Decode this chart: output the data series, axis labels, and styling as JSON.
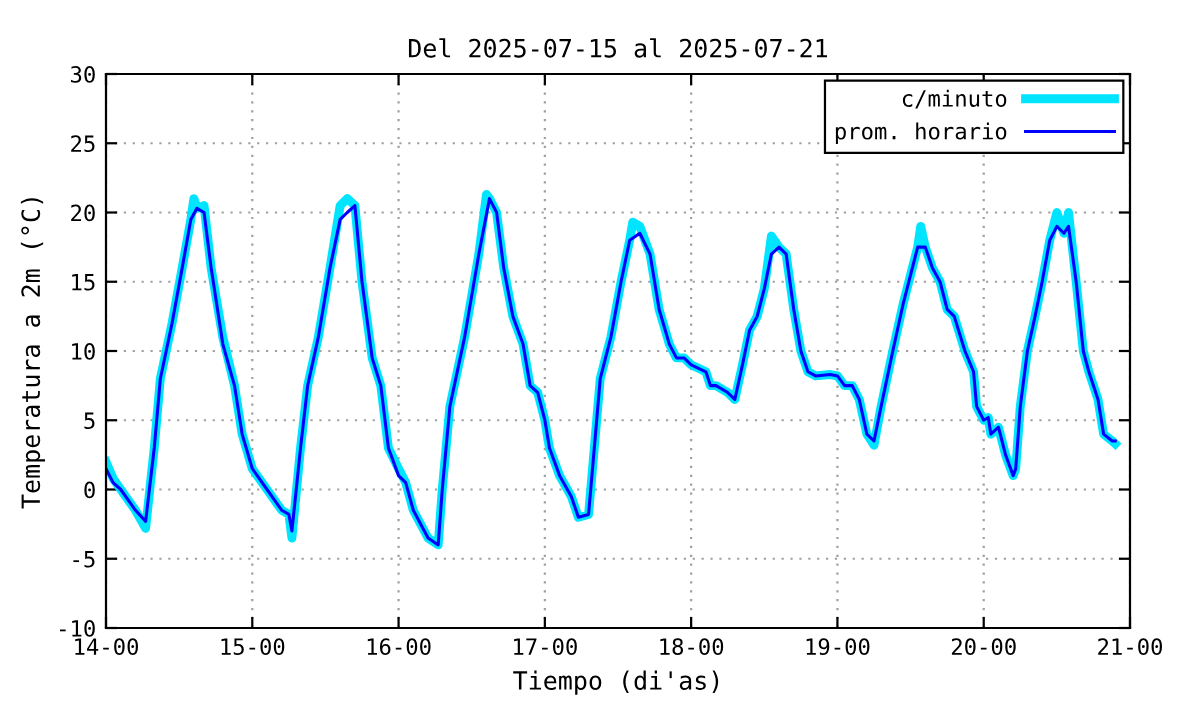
{
  "chart_data": {
    "type": "line",
    "title": "Del 2025-07-15 al 2025-07-21",
    "xlabel": "Tiempo (di'as)",
    "ylabel": "Temperatura a 2m (°C)",
    "xlim": [
      "2025-07-14T00:00",
      "2025-07-21T00:00"
    ],
    "ylim": [
      -10,
      30
    ],
    "xticks": [
      {
        "value": "2025-07-14T00:00",
        "label": "14-00"
      },
      {
        "value": "2025-07-15T00:00",
        "label": "15-00"
      },
      {
        "value": "2025-07-16T00:00",
        "label": "16-00"
      },
      {
        "value": "2025-07-17T00:00",
        "label": "17-00"
      },
      {
        "value": "2025-07-18T00:00",
        "label": "18-00"
      },
      {
        "value": "2025-07-19T00:00",
        "label": "19-00"
      },
      {
        "value": "2025-07-20T00:00",
        "label": "20-00"
      },
      {
        "value": "2025-07-21T00:00",
        "label": "21-00"
      }
    ],
    "yticks": [
      -10,
      -5,
      0,
      5,
      10,
      15,
      20,
      25,
      30
    ],
    "grid": true,
    "legend": "top right",
    "line_style": "solid",
    "marker": "none",
    "series": [
      {
        "name": "c/minuto",
        "color": "#00e5ff",
        "x": [
          "2025-07-14T00:00",
          "2025-07-14T01:10",
          "2025-07-14T02:25",
          "2025-07-14T04:50",
          "2025-07-14T06:30",
          "2025-07-14T07:55",
          "2025-07-14T08:55",
          "2025-07-14T10:50",
          "2025-07-14T12:30",
          "2025-07-14T13:55",
          "2025-07-14T14:25",
          "2025-07-14T14:55",
          "2025-07-14T16:05",
          "2025-07-14T17:15",
          "2025-07-14T19:10",
          "2025-07-14T21:05",
          "2025-07-14T22:20",
          "2025-07-15T00:00",
          "2025-07-15T02:25",
          "2025-07-15T04:50",
          "2025-07-15T06:00",
          "2025-07-15T06:30",
          "2025-07-15T07:55",
          "2025-07-15T09:05",
          "2025-07-15T10:50",
          "2025-07-15T12:45",
          "2025-07-15T14:25",
          "2025-07-15T15:35",
          "2025-07-15T16:50",
          "2025-07-15T18:00",
          "2025-07-15T19:40",
          "2025-07-15T21:05",
          "2025-07-15T22:20",
          "2025-07-16T00:00",
          "2025-07-16T01:10",
          "2025-07-16T02:25",
          "2025-07-16T04:50",
          "2025-07-16T06:30",
          "2025-07-16T07:10",
          "2025-07-16T08:25",
          "2025-07-16T10:50",
          "2025-07-16T13:10",
          "2025-07-16T14:25",
          "2025-07-16T14:55",
          "2025-07-16T16:05",
          "2025-07-16T17:15",
          "2025-07-16T18:45",
          "2025-07-16T20:25",
          "2025-07-16T21:35",
          "2025-07-16T22:50",
          "2025-07-17T00:00",
          "2025-07-17T00:45",
          "2025-07-17T02:25",
          "2025-07-17T04:20",
          "2025-07-17T05:30",
          "2025-07-17T07:10",
          "2025-07-17T07:55",
          "2025-07-17T09:05",
          "2025-07-17T10:50",
          "2025-07-17T12:30",
          "2025-07-17T13:55",
          "2025-07-17T14:25",
          "2025-07-17T15:35",
          "2025-07-17T17:15",
          "2025-07-17T18:45",
          "2025-07-17T20:25",
          "2025-07-17T21:35",
          "2025-07-17T22:50",
          "2025-07-18T00:00",
          "2025-07-18T02:25",
          "2025-07-18T03:10",
          "2025-07-18T04:05",
          "2025-07-18T06:00",
          "2025-07-18T07:10",
          "2025-07-18T08:25",
          "2025-07-18T09:35",
          "2025-07-18T10:50",
          "2025-07-18T12:00",
          "2025-07-18T13:10",
          "2025-07-18T14:25",
          "2025-07-18T15:35",
          "2025-07-18T16:50",
          "2025-07-18T18:00",
          "2025-07-18T19:10",
          "2025-07-18T20:25",
          "2025-07-18T22:50",
          "2025-07-19T00:00",
          "2025-07-19T01:10",
          "2025-07-19T02:25",
          "2025-07-19T03:35",
          "2025-07-19T04:50",
          "2025-07-19T06:00",
          "2025-07-19T07:10",
          "2025-07-19T09:05",
          "2025-07-19T10:50",
          "2025-07-19T13:10",
          "2025-07-19T13:40",
          "2025-07-19T14:25",
          "2025-07-19T15:35",
          "2025-07-19T16:50",
          "2025-07-19T18:00",
          "2025-07-19T19:10",
          "2025-07-19T20:55",
          "2025-07-19T22:20",
          "2025-07-19T22:50",
          "2025-07-20T00:00",
          "2025-07-20T00:45",
          "2025-07-20T01:10",
          "2025-07-20T02:25",
          "2025-07-20T03:35",
          "2025-07-20T04:50",
          "2025-07-20T05:15",
          "2025-07-20T06:00",
          "2025-07-20T07:10",
          "2025-07-20T08:25",
          "2025-07-20T09:35",
          "2025-07-20T10:50",
          "2025-07-20T12:00",
          "2025-07-20T13:10",
          "2025-07-20T13:55",
          "2025-07-20T15:10",
          "2025-07-20T16:20",
          "2025-07-20T17:15",
          "2025-07-20T18:45",
          "2025-07-20T19:40",
          "2025-07-20T21:05",
          "2025-07-20T21:35"
        ],
        "values": [
          2,
          0.8,
          0,
          -1.5,
          -2.8,
          3,
          8,
          12,
          16,
          19.5,
          21,
          20.3,
          20.5,
          16,
          11,
          7.5,
          4,
          1.5,
          0,
          -1.5,
          -1.8,
          -3.5,
          3,
          7.5,
          11,
          16,
          20.5,
          21,
          20.5,
          15,
          9.5,
          7.5,
          3,
          1.5,
          0.5,
          -1.5,
          -3.5,
          -4,
          0,
          6,
          11,
          17,
          21.3,
          21,
          20,
          16,
          12.5,
          10.5,
          7.5,
          7,
          5,
          3,
          1,
          -0.5,
          -2,
          -1.8,
          2,
          8,
          11,
          15,
          18,
          19.3,
          19,
          17,
          13,
          10.5,
          9.5,
          9.5,
          9,
          8.5,
          7.5,
          7.5,
          7,
          6.5,
          9,
          11.5,
          12.5,
          14.5,
          18.3,
          17.5,
          17,
          13,
          10,
          8.5,
          8.2,
          8.3,
          8.2,
          7.5,
          7.5,
          6.5,
          4,
          3.2,
          6,
          10,
          13.5,
          17.5,
          19,
          17.5,
          16,
          15,
          13,
          12.5,
          10,
          8.5,
          6,
          5,
          5.2,
          4,
          4.5,
          2.5,
          1,
          1.5,
          6,
          10,
          12.5,
          15,
          18,
          20,
          18.5,
          20,
          15,
          10,
          8.5,
          6.5,
          4,
          3.5,
          3.3
        ]
      },
      {
        "name": "prom. horario",
        "color": "#0000ff",
        "x": [
          "2025-07-14T00:00",
          "2025-07-14T01:10",
          "2025-07-14T02:25",
          "2025-07-14T04:50",
          "2025-07-14T06:30",
          "2025-07-14T07:55",
          "2025-07-14T08:55",
          "2025-07-14T10:50",
          "2025-07-14T12:30",
          "2025-07-14T13:55",
          "2025-07-14T14:55",
          "2025-07-14T16:05",
          "2025-07-14T17:15",
          "2025-07-14T19:10",
          "2025-07-14T21:05",
          "2025-07-14T22:20",
          "2025-07-15T00:00",
          "2025-07-15T02:25",
          "2025-07-15T04:50",
          "2025-07-15T06:00",
          "2025-07-15T06:30",
          "2025-07-15T07:55",
          "2025-07-15T09:05",
          "2025-07-15T10:50",
          "2025-07-15T12:45",
          "2025-07-15T14:25",
          "2025-07-15T15:35",
          "2025-07-15T16:50",
          "2025-07-15T18:00",
          "2025-07-15T19:40",
          "2025-07-15T21:05",
          "2025-07-15T22:20",
          "2025-07-16T00:00",
          "2025-07-16T01:10",
          "2025-07-16T02:25",
          "2025-07-16T04:50",
          "2025-07-16T06:30",
          "2025-07-16T07:10",
          "2025-07-16T08:25",
          "2025-07-16T10:50",
          "2025-07-16T13:10",
          "2025-07-16T14:55",
          "2025-07-16T16:05",
          "2025-07-16T17:15",
          "2025-07-16T18:45",
          "2025-07-16T20:25",
          "2025-07-16T21:35",
          "2025-07-16T22:50",
          "2025-07-17T00:00",
          "2025-07-17T00:45",
          "2025-07-17T02:25",
          "2025-07-17T04:20",
          "2025-07-17T05:30",
          "2025-07-17T07:10",
          "2025-07-17T07:55",
          "2025-07-17T09:05",
          "2025-07-17T10:50",
          "2025-07-17T12:30",
          "2025-07-17T13:55",
          "2025-07-17T15:35",
          "2025-07-17T17:15",
          "2025-07-17T18:45",
          "2025-07-17T20:25",
          "2025-07-17T21:35",
          "2025-07-17T22:50",
          "2025-07-18T00:00",
          "2025-07-18T02:25",
          "2025-07-18T03:10",
          "2025-07-18T04:05",
          "2025-07-18T06:00",
          "2025-07-18T07:10",
          "2025-07-18T08:25",
          "2025-07-18T09:35",
          "2025-07-18T10:50",
          "2025-07-18T12:00",
          "2025-07-18T13:10",
          "2025-07-18T14:25",
          "2025-07-18T15:35",
          "2025-07-18T16:50",
          "2025-07-18T18:00",
          "2025-07-18T19:10",
          "2025-07-18T20:25",
          "2025-07-18T22:50",
          "2025-07-19T00:00",
          "2025-07-19T01:10",
          "2025-07-19T02:25",
          "2025-07-19T03:35",
          "2025-07-19T04:50",
          "2025-07-19T06:00",
          "2025-07-19T07:10",
          "2025-07-19T09:05",
          "2025-07-19T10:50",
          "2025-07-19T13:10",
          "2025-07-19T14:25",
          "2025-07-19T15:35",
          "2025-07-19T16:50",
          "2025-07-19T18:00",
          "2025-07-19T19:10",
          "2025-07-19T20:55",
          "2025-07-19T22:20",
          "2025-07-19T22:50",
          "2025-07-20T00:00",
          "2025-07-20T00:45",
          "2025-07-20T01:10",
          "2025-07-20T02:25",
          "2025-07-20T03:35",
          "2025-07-20T04:50",
          "2025-07-20T05:15",
          "2025-07-20T06:00",
          "2025-07-20T07:10",
          "2025-07-20T08:25",
          "2025-07-20T09:35",
          "2025-07-20T10:50",
          "2025-07-20T12:00",
          "2025-07-20T13:10",
          "2025-07-20T13:55",
          "2025-07-20T15:10",
          "2025-07-20T16:20",
          "2025-07-20T17:15",
          "2025-07-20T18:45",
          "2025-07-20T19:40",
          "2025-07-20T21:05",
          "2025-07-20T21:35"
        ],
        "values": [
          1.5,
          0.5,
          0,
          -1.5,
          -2.3,
          3,
          8,
          12,
          16,
          19.5,
          20.3,
          20,
          16,
          10.5,
          7.5,
          4,
          1.5,
          0,
          -1.5,
          -1.8,
          -3,
          3,
          7.5,
          11,
          16,
          19.5,
          20,
          20.5,
          15,
          9.5,
          7.5,
          3,
          1,
          0.5,
          -1.5,
          -3.5,
          -4,
          0,
          6,
          11,
          17,
          21,
          20,
          16,
          12.5,
          10.5,
          7.5,
          7,
          5,
          3,
          1,
          -0.5,
          -2,
          -1.8,
          2,
          8,
          11,
          15,
          18,
          18.5,
          17,
          13,
          10.5,
          9.5,
          9.5,
          9,
          8.5,
          7.5,
          7.5,
          7,
          6.5,
          9,
          11.5,
          12.5,
          14.5,
          17,
          17.5,
          17,
          13,
          10,
          8.5,
          8.2,
          8.3,
          8.2,
          7.5,
          7.5,
          6.5,
          4,
          3.5,
          6,
          10,
          13.5,
          17.5,
          17.5,
          16,
          15,
          13,
          12.5,
          10,
          8.5,
          6,
          5,
          5.2,
          4,
          4.5,
          2.5,
          1,
          1.5,
          6,
          10,
          12.5,
          15,
          18,
          19,
          18.5,
          19,
          15,
          10,
          8.5,
          6.5,
          4,
          3.5,
          3.5
        ]
      }
    ]
  }
}
